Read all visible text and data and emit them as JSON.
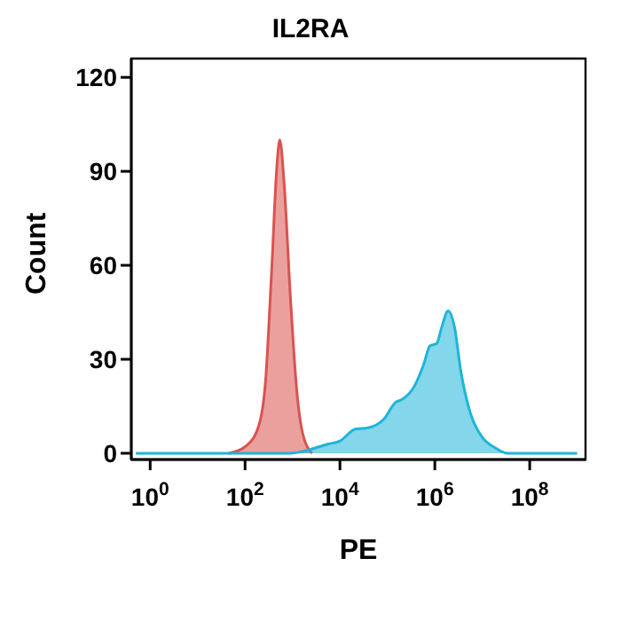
{
  "chart_data": {
    "type": "area",
    "title": "IL2RA",
    "xlabel": "PE",
    "ylabel": "Count",
    "log": "x",
    "xlim": [
      0.4,
      1500000000
    ],
    "xticks": [
      {
        "value": 1,
        "label": "10$^{0}$"
      },
      {
        "value": 100,
        "label": "10$^{2}$"
      },
      {
        "value": 10000,
        "label": "10$^{4}$"
      },
      {
        "value": 1000000,
        "label": "10$^{6}$"
      },
      {
        "value": 100000000,
        "label": "10$^{8}$"
      }
    ],
    "ylim": [
      -2,
      126
    ],
    "yticks": [
      0,
      30,
      60,
      90,
      120
    ],
    "grid": false,
    "series": [
      {
        "color": "#d9534f",
        "x": [
          45,
          110,
          200,
          270,
          360,
          470,
          540,
          660,
          910,
          1230,
          1660,
          2600
        ],
        "values": [
          0,
          2.6,
          9.4,
          23,
          57,
          92,
          100,
          87,
          49,
          20,
          6,
          0
        ]
      },
      {
        "color": "#1fb4d8",
        "x": [
          0.5,
          910,
          3000,
          5500,
          10000,
          21000,
          39000,
          83000,
          150000,
          200000,
          370000,
          580000,
          790000,
          1100000,
          1400000,
          1900000,
          2600000,
          3500000,
          5600000,
          10000000,
          19000000,
          34000000,
          1000000000
        ],
        "values": [
          0,
          0,
          1.7,
          2.9,
          3.9,
          7.7,
          8.1,
          10.8,
          16.3,
          17.1,
          21.4,
          28.3,
          34.3,
          35.1,
          40.3,
          45.4,
          40.3,
          26.6,
          12.9,
          5.1,
          1.7,
          0,
          0
        ]
      }
    ]
  }
}
